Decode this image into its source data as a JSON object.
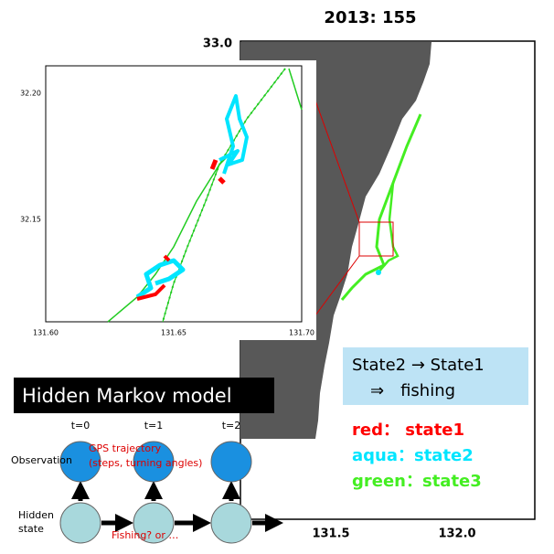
{
  "map": {
    "title": "2013: 155",
    "lat_label": "33.0",
    "lon_labels": [
      "131.5",
      "132.0"
    ]
  },
  "inset": {
    "yticks": [
      "32.20",
      "32.15"
    ],
    "xticks": [
      "131.60",
      "131.65",
      "131.70"
    ]
  },
  "note": {
    "line1": "State2 → State1",
    "line2": "⇒　fishing"
  },
  "legend": [
    {
      "label": "red： state1",
      "color": "#ff0000"
    },
    {
      "label": "aqua：state2",
      "color": "#00e5ff"
    },
    {
      "label": "green：state3",
      "color": "#44ee22"
    }
  ],
  "hmm": {
    "title": "Hidden Markov model",
    "steps": [
      "t=0",
      "t=1",
      "t=2"
    ],
    "observation": "Observation",
    "gps1": "GPS trajectory",
    "gps2": "(steps, turning angles)",
    "hidden1": "Hidden",
    "hidden2": "state",
    "fishing": "Fishing? or …"
  }
}
